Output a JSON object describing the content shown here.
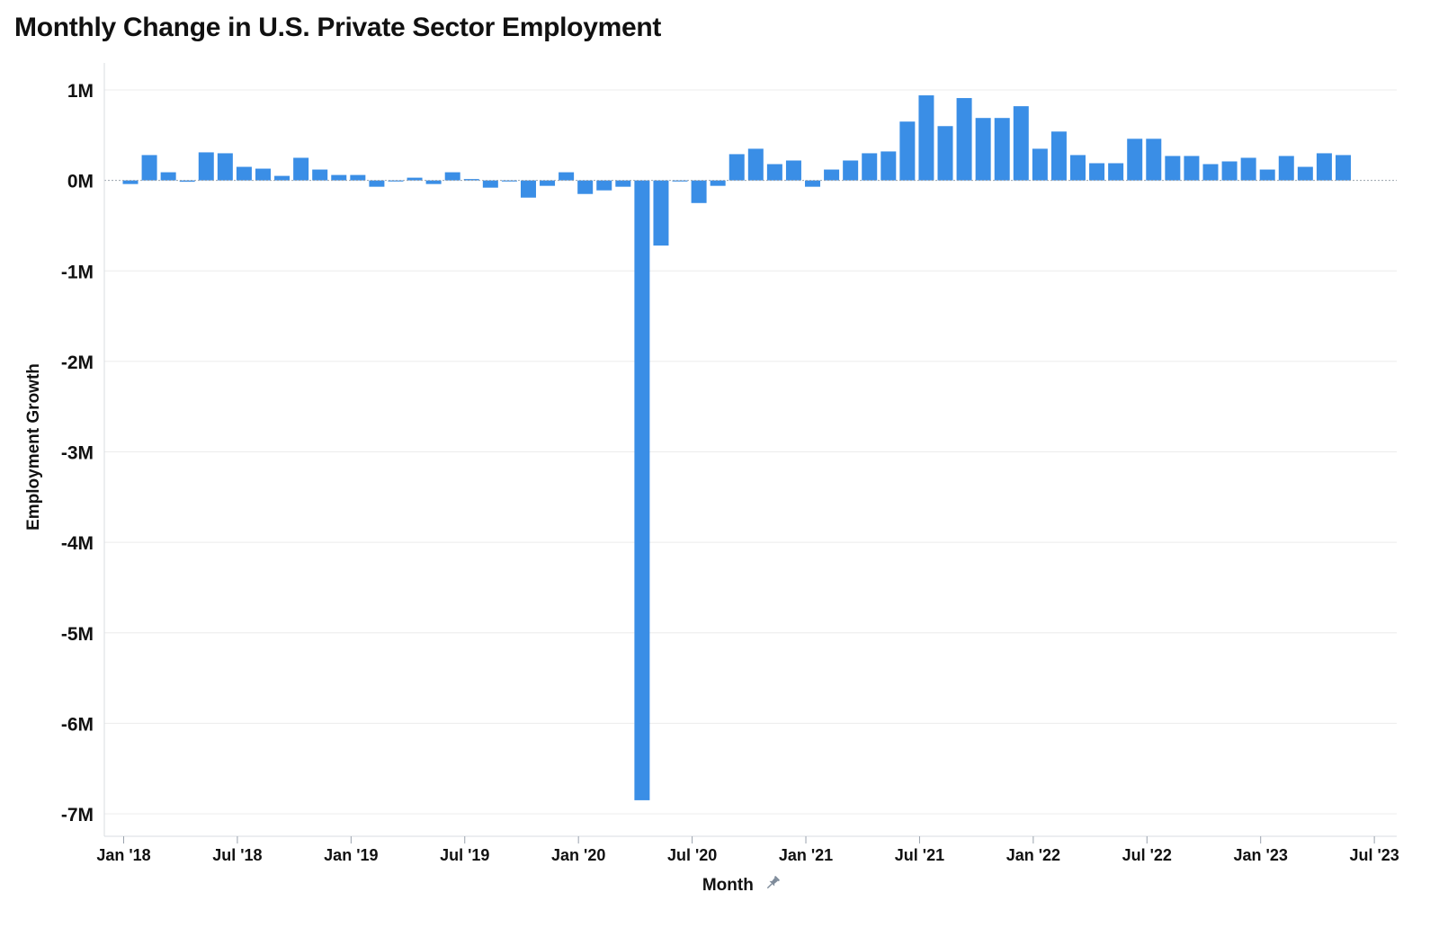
{
  "title": "Monthly Change in U.S. Private Sector Employment",
  "colors": {
    "bar": "#3a8ee6",
    "grid": "#ececec",
    "axis": "#9aa2ad",
    "text": "#111111",
    "pin": "#7e8b9a"
  },
  "icons": {
    "x_axis_pin": "pin-icon"
  },
  "chart_data": {
    "type": "bar",
    "title": "Monthly Change in U.S. Private Sector Employment",
    "xlabel": "Month",
    "ylabel": "Employment Growth",
    "ylim": [
      -7000000,
      1000000
    ],
    "y_ticks": [
      1000000,
      0,
      -1000000,
      -2000000,
      -3000000,
      -4000000,
      -5000000,
      -6000000,
      -7000000
    ],
    "y_tick_labels": [
      "1M",
      "0M",
      "-1M",
      "-2M",
      "-3M",
      "-4M",
      "-5M",
      "-6M",
      "-7M"
    ],
    "x_ticks": [
      "2018-01",
      "2018-07",
      "2019-01",
      "2019-07",
      "2020-01",
      "2020-07",
      "2021-01",
      "2021-07",
      "2022-01",
      "2022-07",
      "2023-01",
      "2023-07"
    ],
    "x_tick_labels": [
      "Jan '18",
      "Jul '18",
      "Jan '19",
      "Jul '19",
      "Jan '20",
      "Jul '20",
      "Jan '21",
      "Jul '21",
      "Jan '22",
      "Jul '22",
      "Jan '23",
      "Jul '23"
    ],
    "x_range": [
      "2018-01",
      "2023-07"
    ],
    "grid": true,
    "legend": "none",
    "categories": [
      "2018-01",
      "2018-02",
      "2018-03",
      "2018-04",
      "2018-05",
      "2018-06",
      "2018-07",
      "2018-08",
      "2018-09",
      "2018-10",
      "2018-11",
      "2018-12",
      "2019-01",
      "2019-02",
      "2019-03",
      "2019-04",
      "2019-05",
      "2019-06",
      "2019-07",
      "2019-08",
      "2019-09",
      "2019-10",
      "2019-11",
      "2019-12",
      "2020-01",
      "2020-02",
      "2020-03",
      "2020-04",
      "2020-05",
      "2020-06",
      "2020-07",
      "2020-08",
      "2020-09",
      "2020-10",
      "2020-11",
      "2020-12",
      "2021-01",
      "2021-02",
      "2021-03",
      "2021-04",
      "2021-05",
      "2021-06",
      "2021-07",
      "2021-08",
      "2021-09",
      "2021-10",
      "2021-11",
      "2021-12",
      "2022-01",
      "2022-02",
      "2022-03",
      "2022-04",
      "2022-05",
      "2022-06",
      "2022-07",
      "2022-08",
      "2022-09",
      "2022-10",
      "2022-11",
      "2022-12",
      "2023-01",
      "2023-02",
      "2023-03",
      "2023-04",
      "2023-05",
      "2023-06"
    ],
    "values": [
      -40000,
      280000,
      90000,
      -15000,
      310000,
      300000,
      150000,
      130000,
      50000,
      250000,
      120000,
      60000,
      60000,
      -70000,
      -10000,
      30000,
      -40000,
      90000,
      15000,
      -80000,
      -10000,
      -190000,
      -60000,
      90000,
      -150000,
      -110000,
      -70000,
      -6850000,
      -720000,
      -10000,
      -250000,
      -60000,
      290000,
      350000,
      180000,
      220000,
      -70000,
      120000,
      220000,
      300000,
      320000,
      650000,
      940000,
      600000,
      910000,
      690000,
      690000,
      820000,
      350000,
      540000,
      280000,
      190000,
      190000,
      460000,
      460000,
      270000,
      270000,
      180000,
      210000,
      250000,
      120000,
      270000,
      150000,
      300000,
      280000,
      0
    ]
  }
}
